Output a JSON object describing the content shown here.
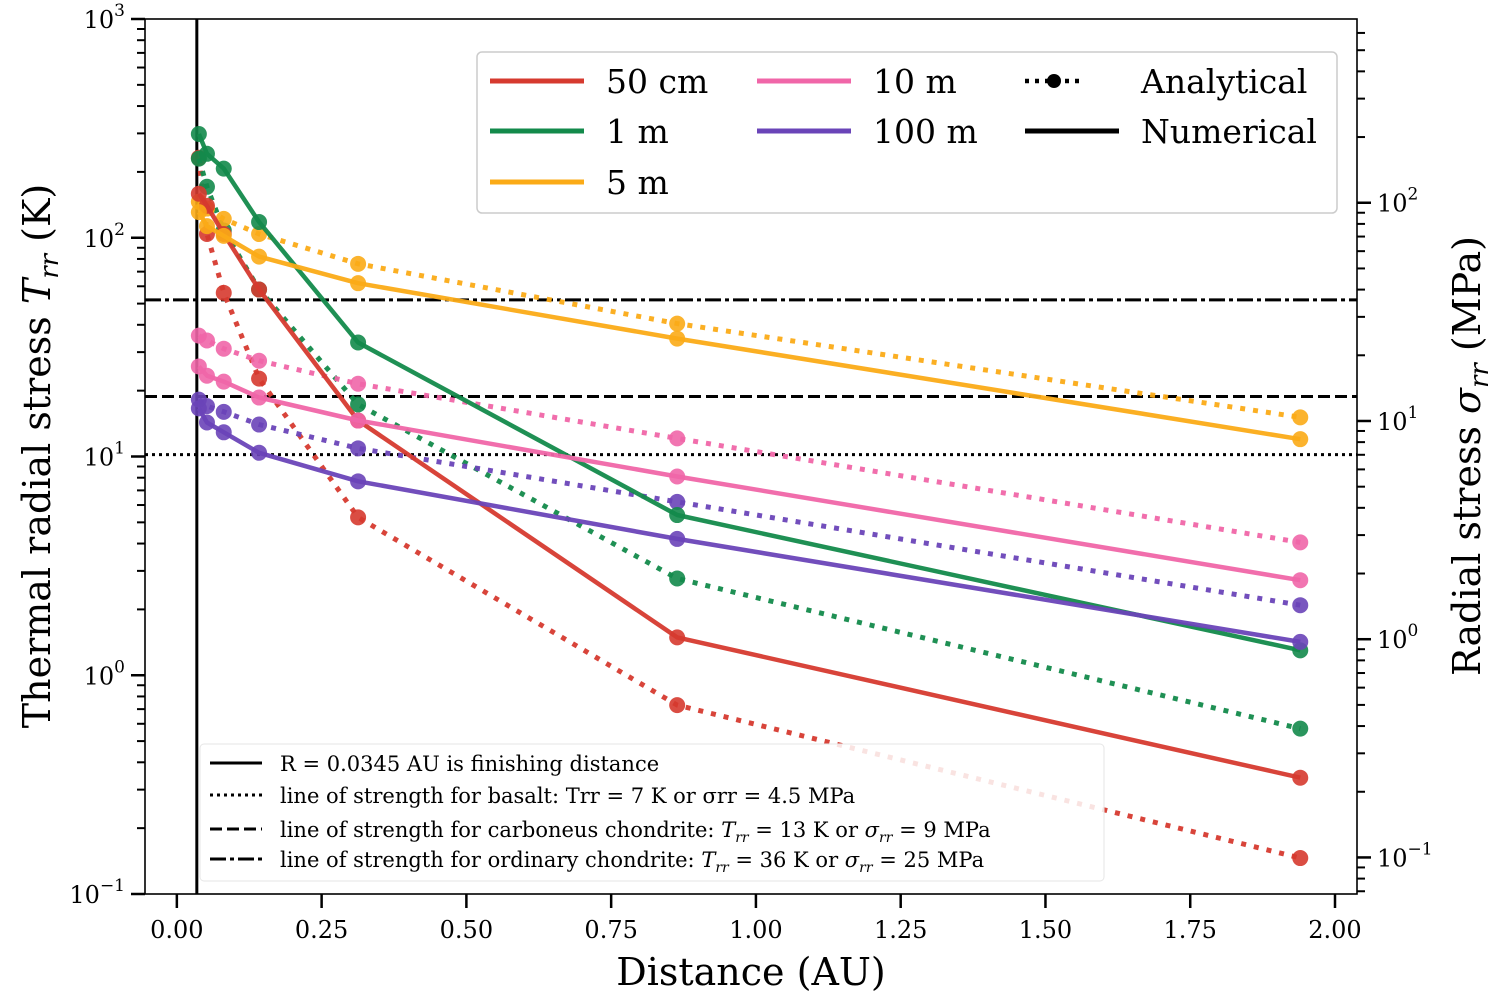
{
  "chart_data": {
    "type": "line",
    "title": "",
    "xlabel": "Distance (AU)",
    "ylabel": "Thermal radial stress T_rr (K)",
    "ylabel_parts": {
      "main": "Thermal radial stress ",
      "sym": "T",
      "sub": "rr",
      "unit": " (K)"
    },
    "ylabel_right": "Radial stress σ_rr (MPa)",
    "ylabel_right_parts": {
      "main": "Radial stress ",
      "sym": "σ",
      "sub": "rr",
      "unit": " (MPa)"
    },
    "xlim": [
      -0.055,
      2.038
    ],
    "ylim": [
      0.1,
      1000
    ],
    "ylim_right": [
      0.068,
      695
    ],
    "yscale": "log",
    "grid": false,
    "x_ticks": [
      "0.00",
      "0.25",
      "0.50",
      "0.75",
      "1.00",
      "1.25",
      "1.50",
      "1.75",
      "2.00"
    ],
    "y_ticks": [
      {
        "base": "10",
        "exp": "−1",
        "value": 0.1
      },
      {
        "base": "10",
        "exp": "0",
        "value": 1
      },
      {
        "base": "10",
        "exp": "1",
        "value": 10
      },
      {
        "base": "10",
        "exp": "2",
        "value": 100
      },
      {
        "base": "10",
        "exp": "3",
        "value": 1000
      }
    ],
    "y_ticks_right": [
      {
        "base": "10",
        "exp": "−1",
        "value": 0.1
      },
      {
        "base": "10",
        "exp": "0",
        "value": 1
      },
      {
        "base": "10",
        "exp": "1",
        "value": 10
      },
      {
        "base": "10",
        "exp": "2",
        "value": 100
      }
    ],
    "x": [
      0.038,
      0.052,
      0.081,
      0.142,
      0.313,
      0.864,
      1.94
    ],
    "series": [
      {
        "name": "50 cm",
        "kind": "Numerical",
        "color": "#d63a2f",
        "values": [
          159,
          140,
          104,
          58,
          14.6,
          1.49,
          0.34
        ]
      },
      {
        "name": "50 cm",
        "kind": "Analytical",
        "color": "#d63a2f",
        "values": [
          232,
          104,
          56,
          22.7,
          5.27,
          0.73,
          0.146
        ]
      },
      {
        "name": "1 m",
        "kind": "Numerical",
        "color": "#138a4b",
        "values": [
          298,
          242,
          207,
          118,
          33.2,
          5.4,
          1.3
        ]
      },
      {
        "name": "1 m",
        "kind": "Analytical",
        "color": "#138a4b",
        "values": [
          230,
          171,
          108,
          58,
          17.3,
          2.77,
          0.57
        ]
      },
      {
        "name": "5 m",
        "kind": "Numerical",
        "color": "#fbab17",
        "values": [
          131,
          113,
          102,
          82,
          62,
          34.6,
          12.0
        ]
      },
      {
        "name": "5 m",
        "kind": "Analytical",
        "color": "#fbab17",
        "values": [
          146,
          136,
          122,
          104,
          76,
          40.5,
          15.1
        ]
      },
      {
        "name": "10 m",
        "kind": "Numerical",
        "color": "#f066a8",
        "values": [
          25.8,
          23.4,
          22.0,
          18.6,
          14.6,
          8.1,
          2.72
        ]
      },
      {
        "name": "10 m",
        "kind": "Analytical",
        "color": "#f066a8",
        "values": [
          35.7,
          33.9,
          31.1,
          27.4,
          21.5,
          12.1,
          4.05
        ]
      },
      {
        "name": "100 m",
        "kind": "Numerical",
        "color": "#6a44b8",
        "values": [
          16.6,
          14.3,
          12.9,
          10.4,
          7.7,
          4.2,
          1.42
        ]
      },
      {
        "name": "100 m",
        "kind": "Analytical",
        "color": "#6a44b8",
        "values": [
          18.2,
          17.0,
          16.0,
          14.0,
          10.9,
          6.2,
          2.09
        ]
      }
    ],
    "reference_lines": [
      {
        "type": "vertical",
        "style": "solid",
        "x": 0.0345,
        "label": "R = 0.0345 AU is finishing distance"
      },
      {
        "type": "horizontal",
        "style": "dotted",
        "y": 10.2,
        "label": "line of strength for basalt: Trr = 7 K or σrr = 4.5 MPa"
      },
      {
        "type": "horizontal",
        "style": "dashed",
        "y": 18.8,
        "label_pre": "line of strength for carboneus chondrite: ",
        "label_sym1": "T",
        "label_sub1": "rr",
        "label_mid": " = 13 K or ",
        "label_sym2": "σ",
        "label_sub2": "rr",
        "label_post": " = 9 MPa"
      },
      {
        "type": "horizontal",
        "style": "dashdot",
        "y": 52,
        "label_pre": "line of strength for ordinary chondrite: ",
        "label_sym1": "T",
        "label_sub1": "rr",
        "label_mid": " = 36 K or ",
        "label_sym2": "σ",
        "label_sub2": "rr",
        "label_post": " = 25 MPa"
      }
    ],
    "legend_main": {
      "placement": "top-right",
      "entries": [
        {
          "label": "50 cm",
          "color": "#d63a2f",
          "style": "solid"
        },
        {
          "label": "1 m",
          "color": "#138a4b",
          "style": "solid"
        },
        {
          "label": "5 m",
          "color": "#fbab17",
          "style": "solid"
        },
        {
          "label": "10 m",
          "color": "#f066a8",
          "style": "solid"
        },
        {
          "label": "100 m",
          "color": "#6a44b8",
          "style": "solid"
        },
        {
          "label": "Analytical",
          "color": "#000000",
          "style": "dotted-marker"
        },
        {
          "label": "Numerical",
          "color": "#000000",
          "style": "solid"
        }
      ]
    },
    "legend_lines": {
      "placement": "lower-left"
    }
  }
}
